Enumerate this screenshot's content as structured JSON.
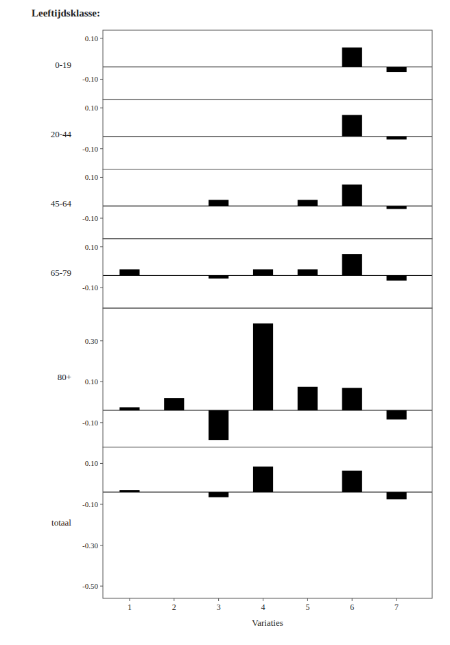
{
  "chart_data": [
    {
      "type": "bar",
      "title": "Leeftijdsklasse:",
      "ylabel": "0-19",
      "color": "#000000",
      "x": [
        1,
        2,
        3,
        4,
        5,
        6,
        7
      ],
      "values": [
        null,
        null,
        null,
        null,
        null,
        0.055,
        -0.065
      ],
      "baseline": -0.04,
      "xlim": [
        0.4,
        7.8
      ],
      "ylim": [
        -0.2,
        0.14
      ],
      "yticks": [
        {
          "value": 0.1,
          "label": "0.10"
        },
        {
          "value": -0.1,
          "label": "-0.10"
        }
      ],
      "tick_labels": "y",
      "grid": false
    },
    {
      "type": "bar",
      "ylabel": "20-44",
      "color": "#000000",
      "x": [
        1,
        2,
        3,
        4,
        5,
        6,
        7
      ],
      "values": [
        null,
        null,
        null,
        null,
        null,
        0.065,
        -0.055
      ],
      "baseline": -0.04,
      "xlim": [
        0.4,
        7.8
      ],
      "ylim": [
        -0.2,
        0.14
      ],
      "yticks": [
        {
          "value": 0.1,
          "label": "0.10"
        },
        {
          "value": -0.1,
          "label": "-0.10"
        }
      ],
      "tick_labels": "y",
      "grid": false
    },
    {
      "type": "bar",
      "ylabel": "45-64",
      "color": "#000000",
      "x": [
        1,
        2,
        3,
        4,
        5,
        6,
        7
      ],
      "values": [
        null,
        null,
        -0.01,
        null,
        -0.01,
        0.065,
        -0.055
      ],
      "baseline": -0.04,
      "xlim": [
        0.4,
        7.8
      ],
      "ylim": [
        -0.2,
        0.14
      ],
      "yticks": [
        {
          "value": 0.1,
          "label": "0.10"
        },
        {
          "value": -0.1,
          "label": "-0.10"
        }
      ],
      "tick_labels": "y",
      "grid": false
    },
    {
      "type": "bar",
      "ylabel": "65-79",
      "color": "#000000",
      "x": [
        1,
        2,
        3,
        4,
        5,
        6,
        7
      ],
      "values": [
        -0.01,
        null,
        -0.055,
        -0.01,
        -0.01,
        0.065,
        -0.065
      ],
      "baseline": -0.04,
      "xlim": [
        0.4,
        7.8
      ],
      "ylim": [
        -0.2,
        0.14
      ],
      "yticks": [
        {
          "value": 0.1,
          "label": "0.10"
        },
        {
          "value": -0.1,
          "label": "-0.10"
        }
      ],
      "tick_labels": "y",
      "grid": false
    },
    {
      "type": "bar",
      "ylabel": "80+",
      "color": "#000000",
      "x": [
        1,
        2,
        3,
        4,
        5,
        6,
        7
      ],
      "values": [
        -0.025,
        0.02,
        -0.185,
        0.385,
        0.075,
        0.07,
        -0.085
      ],
      "baseline": -0.04,
      "xlim": [
        0.4,
        7.8
      ],
      "ylim": [
        -0.22,
        0.46
      ],
      "yticks": [
        {
          "value": 0.3,
          "label": "0.30"
        },
        {
          "value": 0.1,
          "label": "0.10"
        },
        {
          "value": -0.1,
          "label": "-0.10"
        }
      ],
      "tick_labels": "y",
      "grid": false
    },
    {
      "type": "bar",
      "ylabel": "totaal",
      "xlabel": "Variaties",
      "color": "#000000",
      "x": [
        1,
        2,
        3,
        4,
        5,
        6,
        7
      ],
      "values": [
        -0.03,
        null,
        -0.065,
        0.085,
        null,
        0.065,
        -0.075
      ],
      "baseline": -0.04,
      "xlim": [
        0.4,
        7.8
      ],
      "ylim": [
        -0.56,
        0.18
      ],
      "xticks": [
        1,
        2,
        3,
        4,
        5,
        6,
        7
      ],
      "yticks": [
        {
          "value": 0.1,
          "label": "0.10"
        },
        {
          "value": -0.1,
          "label": "-0.10"
        },
        {
          "value": -0.3,
          "label": "-0.30"
        },
        {
          "value": -0.5,
          "label": "-0.50"
        }
      ],
      "grid": false
    }
  ]
}
